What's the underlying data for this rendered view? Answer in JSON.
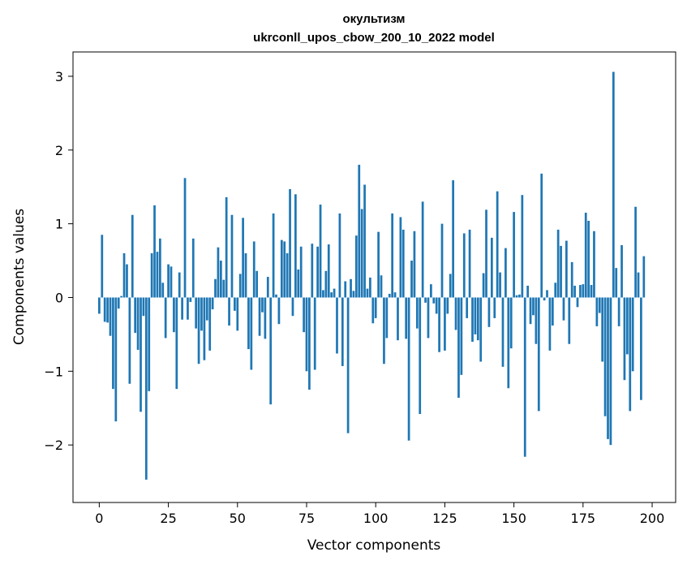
{
  "chart_data": {
    "type": "bar",
    "title": "окультизм",
    "subtitle": "ukrconll_upos_cbow_200_10_2022 model",
    "xlabel": "Vector components",
    "ylabel": "Components values",
    "xlim": [
      -9.5,
      208.5
    ],
    "ylim": [
      -2.78,
      3.33
    ],
    "xticks": [
      0,
      25,
      50,
      75,
      100,
      125,
      150,
      175,
      200
    ],
    "yticks": [
      -2,
      -1,
      0,
      1,
      2,
      3
    ],
    "ytick_labels": [
      "−2",
      "−1",
      "0",
      "1",
      "2",
      "3"
    ],
    "bar_color": "#1f77b4",
    "values": [
      -0.22,
      0.85,
      -0.33,
      -0.34,
      -0.52,
      -1.24,
      -1.68,
      -0.15,
      0.02,
      0.6,
      0.45,
      -1.17,
      1.12,
      -0.48,
      -0.71,
      -1.55,
      -0.25,
      -2.47,
      -1.27,
      0.6,
      1.25,
      0.62,
      0.8,
      0.2,
      -0.55,
      0.45,
      0.42,
      -0.47,
      -1.24,
      0.34,
      -0.3,
      1.62,
      -0.3,
      -0.06,
      0.8,
      -0.42,
      -0.9,
      -0.45,
      -0.85,
      -0.31,
      -0.72,
      -0.16,
      0.25,
      0.68,
      0.5,
      0.24,
      1.36,
      -0.38,
      1.12,
      -0.18,
      -0.45,
      0.32,
      1.08,
      0.6,
      -0.7,
      -0.98,
      0.76,
      0.36,
      -0.52,
      -0.2,
      -0.56,
      0.28,
      -1.45,
      1.14,
      0.04,
      -0.36,
      0.78,
      0.76,
      0.6,
      1.47,
      -0.25,
      1.4,
      0.38,
      0.69,
      -0.47,
      -1.0,
      -1.25,
      0.73,
      -0.98,
      0.69,
      1.26,
      0.1,
      0.36,
      0.72,
      0.07,
      0.12,
      -0.76,
      1.14,
      -0.93,
      0.22,
      -1.84,
      0.25,
      0.09,
      0.84,
      1.8,
      1.2,
      1.53,
      0.12,
      0.27,
      -0.35,
      -0.28,
      0.89,
      0.3,
      -0.9,
      -0.55,
      0.05,
      1.14,
      0.07,
      -0.58,
      1.09,
      0.92,
      -0.56,
      -1.94,
      0.5,
      0.9,
      -0.42,
      -1.58,
      1.3,
      -0.07,
      -0.55,
      0.18,
      -0.08,
      -0.22,
      -0.74,
      1.0,
      -0.72,
      -0.22,
      0.32,
      1.59,
      -0.44,
      -1.36,
      -1.05,
      0.87,
      -0.28,
      0.92,
      -0.6,
      -0.5,
      -0.58,
      -0.87,
      0.33,
      1.19,
      -0.4,
      0.81,
      -0.28,
      1.44,
      0.34,
      -0.94,
      0.67,
      -1.23,
      -0.69,
      1.16,
      0.03,
      0.04,
      1.39,
      -2.16,
      0.16,
      -0.36,
      -0.24,
      -0.63,
      -1.54,
      1.68,
      -0.04,
      0.1,
      -0.72,
      -0.38,
      0.2,
      0.92,
      0.7,
      -0.31,
      0.77,
      -0.63,
      0.48,
      0.16,
      -0.13,
      0.17,
      0.18,
      1.15,
      1.04,
      0.17,
      0.9,
      -0.39,
      -0.21,
      -0.87,
      -1.61,
      -1.92,
      -2.0,
      3.06,
      0.4,
      -0.39,
      0.71,
      -1.12,
      -0.77,
      -1.54,
      -1.0,
      1.23,
      0.34,
      -1.39,
      0.56
    ]
  }
}
